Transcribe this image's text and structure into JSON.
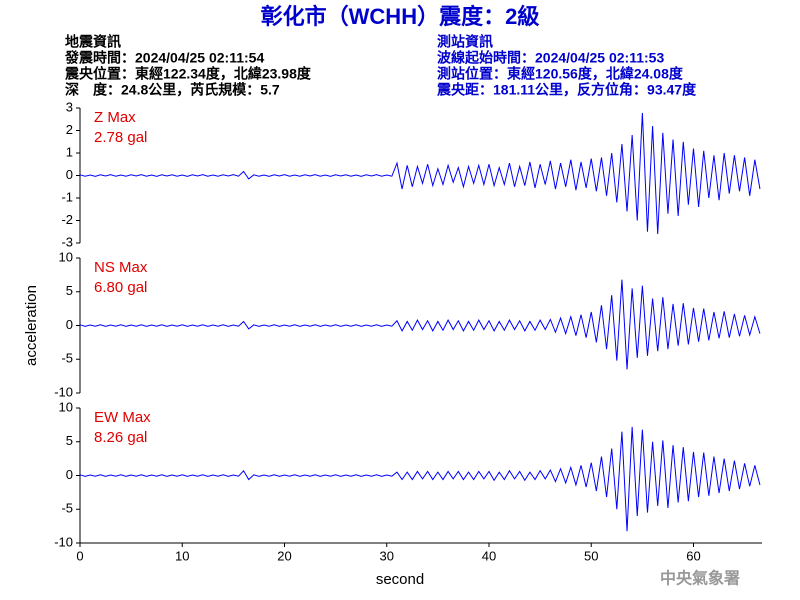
{
  "header": {
    "title": "彰化市（WCHH）震度：2級",
    "left_info": [
      "地震資訊",
      "發震時間：2024/04/25 02:11:54",
      "震央位置：東經122.34度，北緯23.98度",
      "深　度：24.8公里，芮氏規模：5.7"
    ],
    "right_info": [
      "測站資訊",
      "波線起始時間：2024/04/25 02:11:53",
      "測站位置：東經120.56度，北緯24.08度",
      "震央距：181.11公里，反方位角：93.47度"
    ]
  },
  "footer": "中央氣象署",
  "chart_data": [
    {
      "type": "line",
      "label": "Z Max",
      "annotation": "2.78 gal",
      "color": "#0000ff",
      "xlim": [
        0,
        66.7
      ],
      "ylim": [
        -3,
        3
      ],
      "yticks": [
        3,
        2,
        1,
        0,
        -1,
        -2,
        -3
      ],
      "x": [
        0,
        0.5,
        1,
        1.5,
        2,
        2.5,
        3,
        3.5,
        4,
        4.5,
        5,
        5.5,
        6,
        6.5,
        7,
        7.5,
        8,
        8.5,
        9,
        9.5,
        10,
        10.5,
        11,
        11.5,
        12,
        12.5,
        13,
        13.5,
        14,
        14.5,
        15,
        15.5,
        16,
        16.5,
        17,
        17.5,
        18,
        18.5,
        19,
        19.5,
        20,
        20.5,
        21,
        21.5,
        22,
        22.5,
        23,
        23.5,
        24,
        24.5,
        25,
        25.5,
        26,
        26.5,
        27,
        27.5,
        28,
        28.5,
        29,
        29.5,
        30,
        30.5,
        31,
        31.5,
        32,
        32.5,
        33,
        33.5,
        34,
        34.5,
        35,
        35.5,
        36,
        36.5,
        37,
        37.5,
        38,
        38.5,
        39,
        39.5,
        40,
        40.5,
        41,
        41.5,
        42,
        42.5,
        43,
        43.5,
        44,
        44.5,
        45,
        45.5,
        46,
        46.5,
        47,
        47.5,
        48,
        48.5,
        49,
        49.5,
        50,
        50.5,
        51,
        51.5,
        52,
        52.5,
        53,
        53.5,
        54,
        54.5,
        55,
        55.5,
        56,
        56.5,
        57,
        57.5,
        58,
        58.5,
        59,
        59.5,
        60,
        60.5,
        61,
        61.5,
        62,
        62.5,
        63,
        63.5,
        64,
        64.5,
        65,
        65.5,
        66,
        66.5
      ],
      "values": [
        0.03,
        -0.03,
        0.02,
        -0.04,
        0.03,
        -0.02,
        0.04,
        -0.03,
        0.02,
        -0.03,
        0.03,
        -0.02,
        0.04,
        -0.03,
        0.02,
        -0.04,
        0.03,
        -0.02,
        0.03,
        -0.03,
        0.02,
        -0.04,
        0.03,
        -0.02,
        0.04,
        -0.03,
        0.02,
        -0.03,
        0.03,
        -0.02,
        0.04,
        -0.03,
        0.18,
        -0.15,
        0.03,
        -0.03,
        0.02,
        -0.04,
        0.03,
        -0.02,
        0.04,
        -0.03,
        0.02,
        -0.03,
        0.03,
        -0.02,
        0.04,
        -0.03,
        0.02,
        -0.04,
        0.03,
        -0.02,
        0.03,
        -0.03,
        0.02,
        -0.04,
        0.03,
        -0.02,
        0.04,
        -0.03,
        0.02,
        -0.03,
        0.55,
        -0.6,
        0.45,
        -0.5,
        0.4,
        -0.35,
        0.5,
        -0.45,
        0.3,
        -0.4,
        0.45,
        -0.3,
        0.35,
        -0.5,
        0.4,
        -0.35,
        0.45,
        -0.4,
        0.5,
        -0.45,
        0.35,
        -0.4,
        0.55,
        -0.5,
        0.4,
        -0.45,
        0.6,
        -0.55,
        0.5,
        -0.4,
        0.65,
        -0.6,
        0.55,
        -0.5,
        0.7,
        -0.65,
        0.6,
        -0.55,
        0.75,
        -0.7,
        0.8,
        -0.9,
        1.0,
        -1.2,
        1.4,
        -1.6,
        1.8,
        -2.0,
        2.78,
        -2.5,
        2.2,
        -2.6,
        1.9,
        -1.7,
        1.6,
        -1.8,
        1.5,
        -1.3,
        1.2,
        -1.4,
        1.1,
        -1.0,
        0.9,
        -1.1,
        1.0,
        -0.8,
        0.9,
        -0.7,
        0.8,
        -0.9,
        0.7,
        -0.6
      ]
    },
    {
      "type": "line",
      "label": "NS Max",
      "annotation": "6.80 gal",
      "color": "#0000ff",
      "ylabel": "acceleration",
      "xlim": [
        0,
        66.7
      ],
      "ylim": [
        -10,
        10
      ],
      "yticks": [
        10,
        5,
        0,
        -5,
        -10
      ],
      "x": [
        0,
        0.5,
        1,
        1.5,
        2,
        2.5,
        3,
        3.5,
        4,
        4.5,
        5,
        5.5,
        6,
        6.5,
        7,
        7.5,
        8,
        8.5,
        9,
        9.5,
        10,
        10.5,
        11,
        11.5,
        12,
        12.5,
        13,
        13.5,
        14,
        14.5,
        15,
        15.5,
        16,
        16.5,
        17,
        17.5,
        18,
        18.5,
        19,
        19.5,
        20,
        20.5,
        21,
        21.5,
        22,
        22.5,
        23,
        23.5,
        24,
        24.5,
        25,
        25.5,
        26,
        26.5,
        27,
        27.5,
        28,
        28.5,
        29,
        29.5,
        30,
        30.5,
        31,
        31.5,
        32,
        32.5,
        33,
        33.5,
        34,
        34.5,
        35,
        35.5,
        36,
        36.5,
        37,
        37.5,
        38,
        38.5,
        39,
        39.5,
        40,
        40.5,
        41,
        41.5,
        42,
        42.5,
        43,
        43.5,
        44,
        44.5,
        45,
        45.5,
        46,
        46.5,
        47,
        47.5,
        48,
        48.5,
        49,
        49.5,
        50,
        50.5,
        51,
        51.5,
        52,
        52.5,
        53,
        53.5,
        54,
        54.5,
        55,
        55.5,
        56,
        56.5,
        57,
        57.5,
        58,
        58.5,
        59,
        59.5,
        60,
        60.5,
        61,
        61.5,
        62,
        62.5,
        63,
        63.5,
        64,
        64.5,
        65,
        65.5,
        66,
        66.5
      ],
      "values": [
        0.1,
        -0.12,
        0.08,
        -0.1,
        0.1,
        -0.12,
        0.08,
        -0.1,
        0.1,
        -0.12,
        0.08,
        -0.1,
        0.1,
        -0.12,
        0.08,
        -0.1,
        0.1,
        -0.12,
        0.08,
        -0.1,
        0.1,
        -0.12,
        0.08,
        -0.1,
        0.1,
        -0.12,
        0.08,
        -0.1,
        0.1,
        -0.12,
        0.08,
        -0.1,
        0.6,
        -0.5,
        0.1,
        -0.12,
        0.08,
        -0.1,
        0.1,
        -0.12,
        0.08,
        -0.1,
        0.1,
        -0.12,
        0.08,
        -0.1,
        0.1,
        -0.12,
        0.08,
        -0.1,
        0.1,
        -0.12,
        0.08,
        -0.1,
        0.1,
        -0.12,
        0.08,
        -0.1,
        0.1,
        -0.12,
        0.08,
        -0.1,
        0.7,
        -0.8,
        0.6,
        -0.7,
        0.8,
        -0.6,
        0.7,
        -0.8,
        0.6,
        -0.7,
        0.8,
        -0.6,
        0.7,
        -0.8,
        0.6,
        -0.7,
        0.8,
        -0.6,
        0.7,
        -0.8,
        0.6,
        -0.7,
        0.8,
        -0.6,
        0.7,
        -0.8,
        0.6,
        -0.7,
        0.8,
        -0.6,
        0.9,
        -1.0,
        1.1,
        -1.2,
        1.3,
        -1.5,
        1.6,
        -1.8,
        2.0,
        -2.5,
        3.0,
        -3.5,
        4.5,
        -5.2,
        6.8,
        -6.5,
        5.5,
        -4.8,
        5.9,
        -4.5,
        4.0,
        -3.8,
        4.2,
        -3.5,
        3.2,
        -3.0,
        3.3,
        -2.8,
        2.6,
        -2.4,
        2.5,
        -2.2,
        2.0,
        -1.9,
        2.1,
        -1.8,
        1.7,
        -1.6,
        1.5,
        -1.4,
        1.3,
        -1.2
      ]
    },
    {
      "type": "line",
      "label": "EW Max",
      "annotation": "8.26 gal",
      "color": "#0000ff",
      "xlabel": "second",
      "xlim": [
        0,
        66.7
      ],
      "ylim": [
        -10,
        10
      ],
      "yticks": [
        10,
        5,
        0,
        -5,
        -10
      ],
      "xticks": [
        0,
        10,
        20,
        30,
        40,
        50,
        60
      ],
      "x": [
        0,
        0.5,
        1,
        1.5,
        2,
        2.5,
        3,
        3.5,
        4,
        4.5,
        5,
        5.5,
        6,
        6.5,
        7,
        7.5,
        8,
        8.5,
        9,
        9.5,
        10,
        10.5,
        11,
        11.5,
        12,
        12.5,
        13,
        13.5,
        14,
        14.5,
        15,
        15.5,
        16,
        16.5,
        17,
        17.5,
        18,
        18.5,
        19,
        19.5,
        20,
        20.5,
        21,
        21.5,
        22,
        22.5,
        23,
        23.5,
        24,
        24.5,
        25,
        25.5,
        26,
        26.5,
        27,
        27.5,
        28,
        28.5,
        29,
        29.5,
        30,
        30.5,
        31,
        31.5,
        32,
        32.5,
        33,
        33.5,
        34,
        34.5,
        35,
        35.5,
        36,
        36.5,
        37,
        37.5,
        38,
        38.5,
        39,
        39.5,
        40,
        40.5,
        41,
        41.5,
        42,
        42.5,
        43,
        43.5,
        44,
        44.5,
        45,
        45.5,
        46,
        46.5,
        47,
        47.5,
        48,
        48.5,
        49,
        49.5,
        50,
        50.5,
        51,
        51.5,
        52,
        52.5,
        53,
        53.5,
        54,
        54.5,
        55,
        55.5,
        56,
        56.5,
        57,
        57.5,
        58,
        58.5,
        59,
        59.5,
        60,
        60.5,
        61,
        61.5,
        62,
        62.5,
        63,
        63.5,
        64,
        64.5,
        65,
        65.5,
        66,
        66.5
      ],
      "values": [
        0.1,
        -0.12,
        0.08,
        -0.1,
        0.1,
        -0.12,
        0.08,
        -0.1,
        0.1,
        -0.12,
        0.08,
        -0.1,
        0.1,
        -0.12,
        0.08,
        -0.1,
        0.1,
        -0.12,
        0.08,
        -0.1,
        0.1,
        -0.12,
        0.08,
        -0.1,
        0.1,
        -0.12,
        0.08,
        -0.1,
        0.1,
        -0.12,
        0.08,
        -0.1,
        0.7,
        -0.6,
        0.1,
        -0.12,
        0.08,
        -0.1,
        0.1,
        -0.12,
        0.08,
        -0.1,
        0.1,
        -0.12,
        0.08,
        -0.1,
        0.1,
        -0.12,
        0.08,
        -0.1,
        0.1,
        -0.12,
        0.08,
        -0.1,
        0.1,
        -0.12,
        0.08,
        -0.1,
        0.1,
        -0.12,
        0.08,
        -0.1,
        0.5,
        -0.6,
        0.5,
        -0.6,
        0.6,
        -0.5,
        0.6,
        -0.6,
        0.5,
        -0.6,
        0.6,
        -0.5,
        0.6,
        -0.6,
        0.5,
        -0.6,
        0.6,
        -0.5,
        0.6,
        -0.7,
        0.5,
        -0.6,
        0.7,
        -0.5,
        0.6,
        -0.7,
        0.5,
        -0.6,
        0.7,
        -0.5,
        0.8,
        -0.9,
        1.0,
        -1.1,
        1.2,
        -1.4,
        1.5,
        -1.7,
        1.9,
        -2.3,
        2.8,
        -3.2,
        4.0,
        -5.0,
        6.5,
        -8.26,
        7.2,
        -6.0,
        6.8,
        -5.5,
        5.0,
        -4.5,
        5.2,
        -4.8,
        4.5,
        -4.0,
        4.2,
        -3.8,
        3.5,
        -3.2,
        3.4,
        -3.0,
        2.8,
        -2.6,
        2.5,
        -2.3,
        2.2,
        -2.0,
        1.8,
        -1.6,
        1.5,
        -1.4
      ]
    }
  ]
}
